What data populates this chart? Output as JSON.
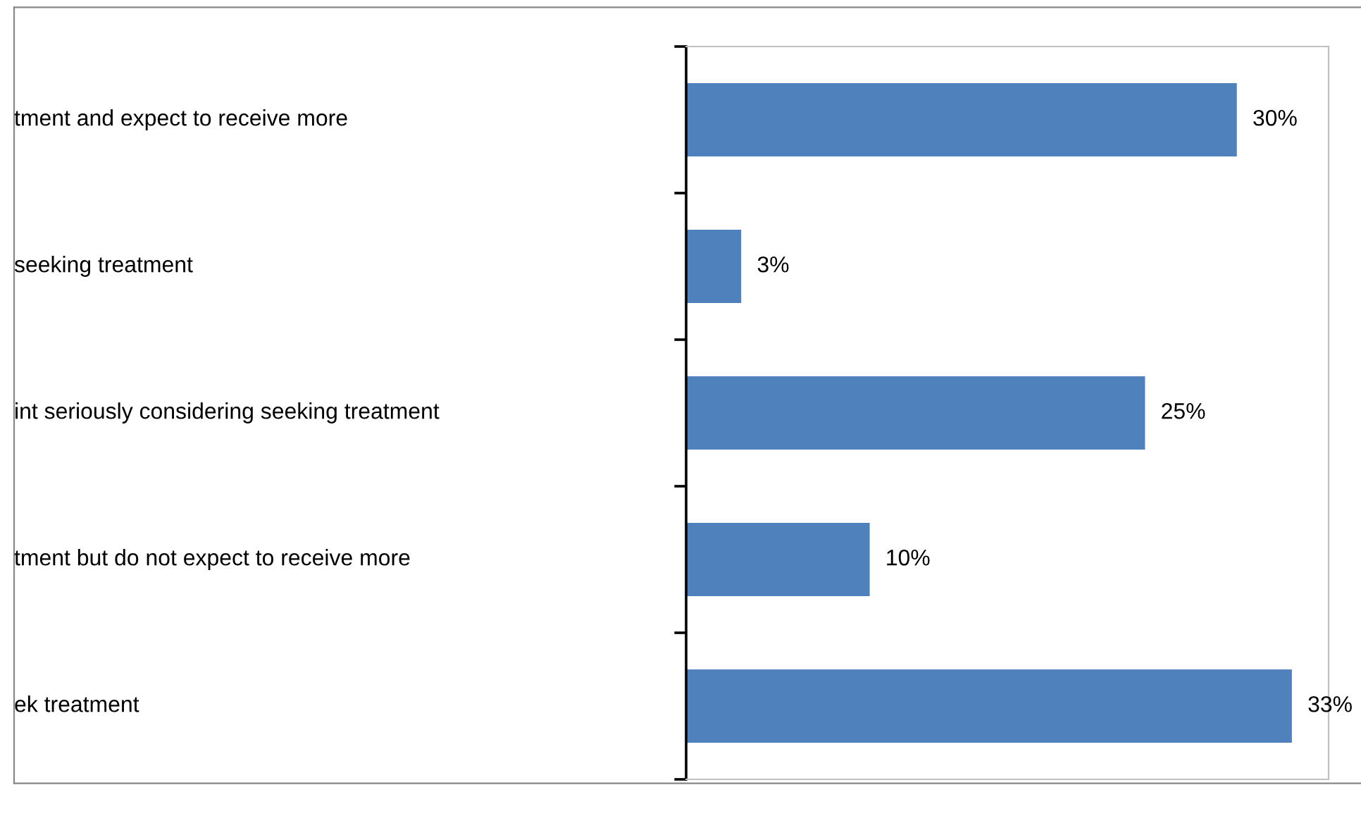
{
  "chart_data": {
    "type": "bar",
    "orientation": "horizontal",
    "categories": [
      "tment and expect to receive more",
      "seeking treatment",
      "int seriously considering seeking treatment",
      "tment but do not expect to receive more",
      "ek treatment"
    ],
    "values": [
      30,
      3,
      25,
      10,
      33
    ],
    "value_labels": [
      "30%",
      "3%",
      "25%",
      "10%",
      "33%"
    ],
    "color": "#4f81bd",
    "xlim": [
      0,
      35
    ],
    "grid": false,
    "legend": false
  }
}
